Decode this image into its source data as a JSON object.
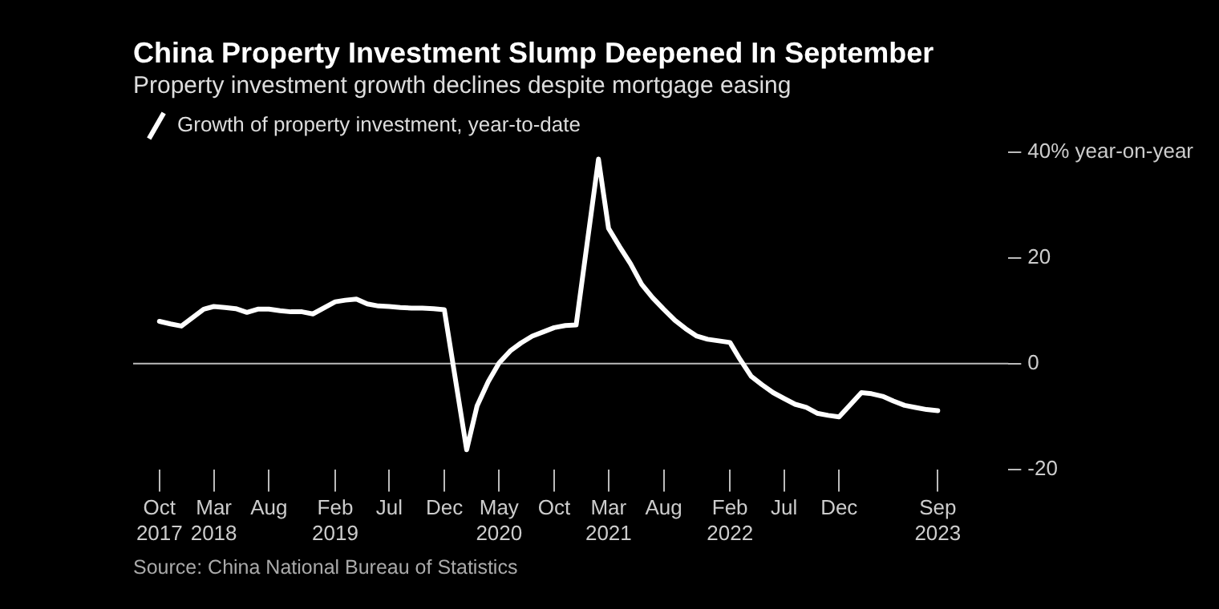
{
  "chart_data": {
    "type": "line",
    "title": "China Property Investment Slump Deepened In September",
    "subtitle": "Property investment growth declines despite mortgage easing",
    "annotations": [
      "Source: China National Bureau of Statistics"
    ],
    "x": [
      "2017-10",
      "2017-11",
      "2017-12",
      "2018-02",
      "2018-03",
      "2018-04",
      "2018-05",
      "2018-06",
      "2018-07",
      "2018-08",
      "2018-09",
      "2018-10",
      "2018-11",
      "2018-12",
      "2019-02",
      "2019-03",
      "2019-04",
      "2019-05",
      "2019-06",
      "2019-07",
      "2019-08",
      "2019-09",
      "2019-10",
      "2019-11",
      "2019-12",
      "2020-02",
      "2020-03",
      "2020-04",
      "2020-05",
      "2020-06",
      "2020-07",
      "2020-08",
      "2020-09",
      "2020-10",
      "2020-11",
      "2020-12",
      "2021-02",
      "2021-03",
      "2021-04",
      "2021-05",
      "2021-06",
      "2021-07",
      "2021-08",
      "2021-09",
      "2021-10",
      "2021-11",
      "2021-12",
      "2022-02",
      "2022-03",
      "2022-04",
      "2022-05",
      "2022-06",
      "2022-07",
      "2022-08",
      "2022-09",
      "2022-10",
      "2022-11",
      "2022-12",
      "2023-02",
      "2023-03",
      "2023-04",
      "2023-05",
      "2023-06",
      "2023-07",
      "2023-08",
      "2023-09"
    ],
    "series": [
      {
        "name": "Growth of property investment, year-to-date",
        "color": "#ffffff",
        "values": [
          8.0,
          7.5,
          7.1,
          10.3,
          10.8,
          10.6,
          10.4,
          9.7,
          10.3,
          10.3,
          10.0,
          9.8,
          9.8,
          9.4,
          11.7,
          12.0,
          12.2,
          11.3,
          10.9,
          10.8,
          10.6,
          10.5,
          10.5,
          10.4,
          10.2,
          -16.3,
          -8.0,
          -3.4,
          0.1,
          2.4,
          3.9,
          5.2,
          6.0,
          6.8,
          7.2,
          7.3,
          38.7,
          25.6,
          22.1,
          18.9,
          15.0,
          12.5,
          10.3,
          8.2,
          6.6,
          5.2,
          4.6,
          4.0,
          0.8,
          -2.4,
          -4.0,
          -5.5,
          -6.6,
          -7.7,
          -8.3,
          -9.4,
          -9.8,
          -10.1,
          -5.5,
          -5.7,
          -6.2,
          -7.1,
          -7.9,
          -8.3,
          -8.7,
          -8.9
        ]
      }
    ],
    "xlim": [
      "2017-07-20",
      "2024-03-15"
    ],
    "xticks": [
      {
        "value": "2017-10",
        "label": "Oct 2017"
      },
      {
        "value": "2018-03",
        "label": "Mar 2018"
      },
      {
        "value": "2018-08",
        "label": "Aug"
      },
      {
        "value": "2019-02",
        "label": "Feb 2019"
      },
      {
        "value": "2019-07",
        "label": "Jul"
      },
      {
        "value": "2019-12",
        "label": "Dec"
      },
      {
        "value": "2020-05",
        "label": "May 2020"
      },
      {
        "value": "2020-10",
        "label": "Oct"
      },
      {
        "value": "2021-03",
        "label": "Mar 2021"
      },
      {
        "value": "2021-08",
        "label": "Aug"
      },
      {
        "value": "2022-02",
        "label": "Feb 2022"
      },
      {
        "value": "2022-07",
        "label": "Jul"
      },
      {
        "value": "2022-12",
        "label": "Dec"
      },
      {
        "value": "2023-09",
        "label": "Sep 2023"
      }
    ],
    "ylim": [
      -20,
      40
    ],
    "yticks": [
      -20,
      0,
      20,
      {
        "value": 40,
        "label": "40% year-on-year"
      }
    ],
    "ref_lines": [
      {
        "axis": "y",
        "value": 0,
        "color": "#bbbbbb"
      }
    ],
    "legend": "top left",
    "grid": false,
    "marker": "none",
    "line_style": "solid"
  }
}
